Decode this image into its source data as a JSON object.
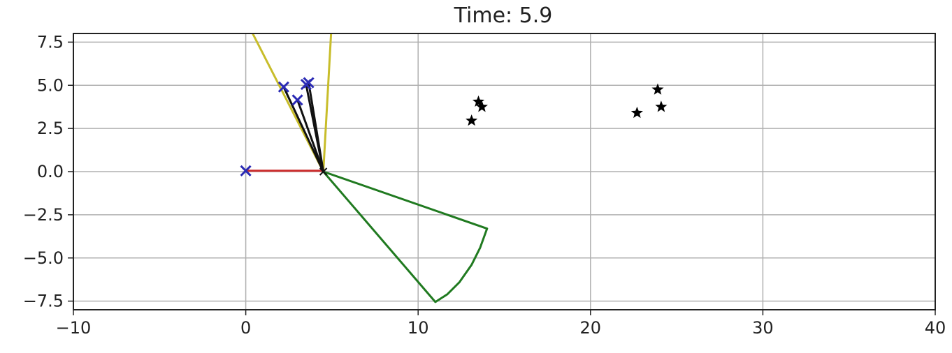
{
  "chart_data": {
    "type": "line",
    "title": "Time: 5.9",
    "xlabel": "",
    "ylabel": "",
    "xlim": [
      -10,
      40
    ],
    "ylim": [
      -8.0,
      8.0
    ],
    "grid": true,
    "x_ticks": [
      -10,
      0,
      10,
      20,
      30,
      40
    ],
    "x_tick_labels": [
      "−10",
      "0",
      "10",
      "20",
      "30",
      "40"
    ],
    "y_ticks": [
      7.5,
      5.0,
      2.5,
      0.0,
      -2.5,
      -5.0,
      -7.5
    ],
    "y_tick_labels": [
      "7.5",
      "5.0",
      "2.5",
      "0.0",
      "−2.5",
      "−5.0",
      "−7.5"
    ],
    "colors": {
      "red_line": "#cc2b2b",
      "yellow_lines": "#c8bd2a",
      "black_lines": "#111111",
      "green_shape": "#207a20",
      "blue_markers": "#2a2ab4",
      "grid": "#b0b0b0",
      "star_markers": "#000000"
    },
    "series": [
      {
        "kind": "red-line",
        "points": [
          [
            0.0,
            0.05
          ],
          [
            4.5,
            0.05
          ]
        ]
      },
      {
        "kind": "yellow-line",
        "points": [
          [
            4.5,
            0.0
          ],
          [
            0.4,
            8.0
          ]
        ]
      },
      {
        "kind": "yellow-line",
        "points": [
          [
            4.5,
            0.0
          ],
          [
            4.95,
            8.0
          ]
        ]
      },
      {
        "kind": "black-line",
        "points": [
          [
            4.5,
            0.0
          ],
          [
            2.2,
            4.9
          ]
        ]
      },
      {
        "kind": "black-line",
        "points": [
          [
            4.5,
            0.0
          ],
          [
            3.0,
            4.15
          ]
        ]
      },
      {
        "kind": "black-line",
        "points": [
          [
            4.5,
            0.0
          ],
          [
            3.5,
            5.05
          ]
        ]
      },
      {
        "kind": "black-line",
        "points": [
          [
            4.5,
            0.0
          ],
          [
            3.65,
            5.15
          ]
        ]
      },
      {
        "kind": "green-shape",
        "points": [
          [
            4.5,
            0.0
          ],
          [
            14.0,
            -3.3
          ],
          [
            13.6,
            -4.4
          ],
          [
            13.1,
            -5.4
          ],
          [
            12.4,
            -6.4
          ],
          [
            11.7,
            -7.1
          ],
          [
            11.0,
            -7.55
          ],
          [
            4.5,
            0.0
          ]
        ]
      }
    ],
    "markers": {
      "blue_x": [
        [
          0.0,
          0.05
        ],
        [
          2.2,
          4.9
        ],
        [
          3.0,
          4.15
        ],
        [
          3.5,
          5.05
        ],
        [
          3.65,
          5.15
        ]
      ],
      "black_x": [
        [
          4.5,
          0.0
        ]
      ],
      "stars": [
        [
          13.1,
          2.95
        ],
        [
          13.5,
          4.05
        ],
        [
          13.7,
          3.75
        ],
        [
          22.7,
          3.4
        ],
        [
          23.9,
          4.75
        ],
        [
          24.1,
          3.75
        ]
      ]
    }
  }
}
